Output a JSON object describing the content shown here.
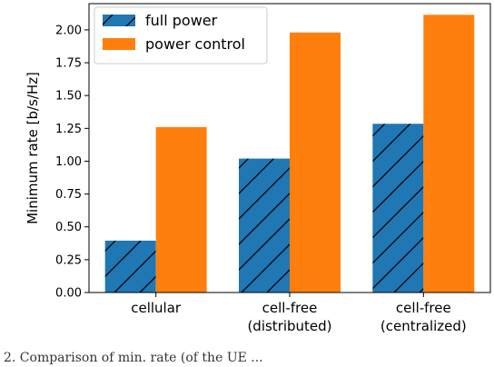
{
  "chart_data": {
    "type": "bar",
    "categories": [
      [
        "cellular"
      ],
      [
        "cell-free",
        "(distributed)"
      ],
      [
        "cell-free",
        "(centralized)"
      ]
    ],
    "series": [
      {
        "name": "full power",
        "values": [
          0.395,
          1.02,
          1.285
        ],
        "color": "#1f77b4",
        "hatch": "diagonal"
      },
      {
        "name": "power control",
        "values": [
          1.26,
          1.98,
          2.115
        ],
        "color": "#ff7f0e"
      }
    ],
    "ylabel": "Minimum rate [b/s/Hz]",
    "ylim": [
      0,
      2.2
    ],
    "yticks": [
      "0.00",
      "0.25",
      "0.50",
      "0.75",
      "1.00",
      "1.25",
      "1.50",
      "1.75",
      "2.00"
    ],
    "grid": false,
    "legend_position": "top-left"
  },
  "caption": "2.   Comparison of min. rate (of the UE ..."
}
